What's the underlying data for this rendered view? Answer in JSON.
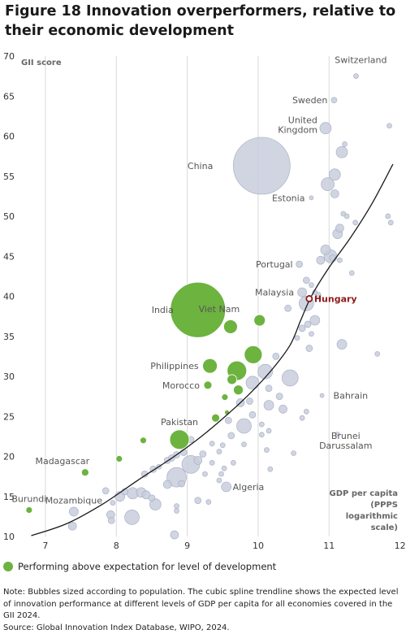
{
  "title": "Figure 18 Innovation overperformers, relative to their economic development",
  "legend_label": "Performing above expectation for level of development",
  "note": "Note: Bubbles sized according to population. The cubic spline trendline shows the expected level of innovation performance at different levels of GDP per capita for all economies covered in the GII 2024.",
  "source": "Source: Global Innovation Index Database, WIPO, 2024.",
  "colors": {
    "overperformer": "#6db33f",
    "other": "#c9cedd",
    "other_stroke": "#aab2c6",
    "highlight": "#8b1a1a",
    "trend": "#1a1a1a",
    "grid": "#d9d9d9",
    "label": "#555555"
  },
  "chart_data": {
    "type": "scatter",
    "title": "Figure 18 Innovation overperformers, relative to their economic development",
    "ylabel": "GII score",
    "xlabel": "GDP per capita (PPPS logarithmic scale)",
    "xlabel_lines": [
      "GDP per capita",
      "(PPPS",
      "logarithmic",
      "scale)"
    ],
    "xlim": [
      6.6,
      12.05
    ],
    "ylim": [
      10,
      70
    ],
    "xticks": [
      7,
      8,
      9,
      10,
      11,
      12
    ],
    "yticks": [
      10,
      15,
      20,
      25,
      30,
      35,
      40,
      45,
      50,
      55,
      60,
      65,
      70
    ],
    "grid": "vertical",
    "legend_position": "bottom-left",
    "trendline": [
      [
        6.8,
        10.1
      ],
      [
        7.3,
        11.6
      ],
      [
        7.8,
        14.0
      ],
      [
        8.3,
        17.0
      ],
      [
        8.8,
        19.9
      ],
      [
        9.2,
        22.5
      ],
      [
        9.6,
        25.5
      ],
      [
        9.9,
        28.0
      ],
      [
        10.2,
        30.9
      ],
      [
        10.45,
        33.9
      ],
      [
        10.6,
        37.0
      ],
      [
        10.75,
        40.0
      ],
      [
        11.0,
        43.6
      ],
      [
        11.3,
        47.3
      ],
      [
        11.6,
        51.5
      ],
      [
        11.9,
        56.5
      ]
    ],
    "highlight": {
      "label": "Hungary",
      "x": 10.72,
      "y": 39.7
    },
    "labeled_points": [
      {
        "label": "Switzerland",
        "x": 11.38,
        "y": 67.5,
        "size": 3,
        "group": "other"
      },
      {
        "label": "Sweden",
        "x": 11.07,
        "y": 64.5,
        "size": 3.5,
        "group": "other"
      },
      {
        "label": "United Kingdom",
        "x": 10.95,
        "y": 61.0,
        "size": 7,
        "group": "other"
      },
      {
        "label": "China",
        "x": 10.05,
        "y": 56.3,
        "size": 35,
        "group": "other"
      },
      {
        "label": "Estonia",
        "x": 10.75,
        "y": 52.3,
        "size": 2.5,
        "group": "other"
      },
      {
        "label": "Portugal",
        "x": 10.58,
        "y": 44.0,
        "size": 4,
        "group": "other"
      },
      {
        "label": "Malaysia",
        "x": 10.62,
        "y": 40.5,
        "size": 5.5,
        "group": "other"
      },
      {
        "label": "India",
        "x": 9.15,
        "y": 38.3,
        "size": 34,
        "group": "overperformer"
      },
      {
        "label": "Viet Nam",
        "x": 9.61,
        "y": 36.2,
        "size": 8.5,
        "group": "overperformer"
      },
      {
        "label": "Philippines",
        "x": 9.32,
        "y": 31.3,
        "size": 9,
        "group": "overperformer"
      },
      {
        "label": "Morocco",
        "x": 9.29,
        "y": 28.9,
        "size": 5,
        "group": "overperformer"
      },
      {
        "label": "Bahrain",
        "x": 10.9,
        "y": 27.6,
        "size": 2.5,
        "group": "other"
      },
      {
        "label": "Pakistan",
        "x": 8.89,
        "y": 22.1,
        "size": 12,
        "group": "overperformer"
      },
      {
        "label": "Brunei Darussalam",
        "x": 11.12,
        "y": 22.8,
        "size": 2.5,
        "group": "other"
      },
      {
        "label": "Madagascar",
        "x": 7.56,
        "y": 18.0,
        "size": 4.5,
        "group": "overperformer"
      },
      {
        "label": "Algeria",
        "x": 9.55,
        "y": 16.2,
        "size": 6,
        "group": "other"
      },
      {
        "label": "Burundi",
        "x": 6.77,
        "y": 13.3,
        "size": 4,
        "group": "overperformer"
      },
      {
        "label": "Mozambique",
        "x": 7.4,
        "y": 13.1,
        "size": 5.5,
        "group": "other"
      }
    ],
    "overperformers": [
      [
        10.02,
        37.0,
        7
      ],
      [
        9.93,
        32.7,
        11
      ],
      [
        9.7,
        30.7,
        12
      ],
      [
        9.63,
        29.6,
        6
      ],
      [
        9.72,
        28.3,
        6
      ],
      [
        9.53,
        27.4,
        4
      ],
      [
        9.4,
        24.8,
        5
      ],
      [
        8.38,
        22.0,
        4
      ],
      [
        8.04,
        19.7,
        4
      ],
      [
        9.56,
        25.5,
        3
      ]
    ],
    "others": [
      [
        11.85,
        61.3,
        3
      ],
      [
        11.22,
        59.0,
        3
      ],
      [
        11.18,
        58.0,
        7
      ],
      [
        11.08,
        55.2,
        7
      ],
      [
        10.98,
        54.0,
        8
      ],
      [
        11.08,
        52.8,
        5
      ],
      [
        11.2,
        50.3,
        3
      ],
      [
        11.25,
        50.0,
        3
      ],
      [
        11.37,
        49.2,
        3
      ],
      [
        11.83,
        50.0,
        3
      ],
      [
        11.87,
        49.2,
        3
      ],
      [
        11.15,
        48.5,
        5
      ],
      [
        11.12,
        47.8,
        6
      ],
      [
        10.95,
        45.8,
        6
      ],
      [
        11.02,
        45.0,
        8
      ],
      [
        11.05,
        44.8,
        4
      ],
      [
        10.88,
        44.5,
        5
      ],
      [
        11.15,
        44.5,
        3
      ],
      [
        11.32,
        42.9,
        3
      ],
      [
        10.68,
        42.0,
        4
      ],
      [
        10.75,
        41.4,
        3
      ],
      [
        10.8,
        40.5,
        3
      ],
      [
        10.85,
        40.2,
        3
      ],
      [
        10.68,
        39.1,
        9
      ],
      [
        10.42,
        38.5,
        4
      ],
      [
        10.8,
        37.0,
        6
      ],
      [
        10.7,
        36.5,
        4
      ],
      [
        10.62,
        36.0,
        4
      ],
      [
        10.75,
        35.3,
        3
      ],
      [
        10.55,
        34.8,
        3
      ],
      [
        11.18,
        34.0,
        6
      ],
      [
        11.68,
        32.8,
        3
      ],
      [
        10.72,
        33.5,
        4
      ],
      [
        10.25,
        32.5,
        4
      ],
      [
        10.1,
        30.6,
        9
      ],
      [
        9.92,
        29.2,
        8
      ],
      [
        10.45,
        29.8,
        10
      ],
      [
        10.15,
        28.5,
        4
      ],
      [
        10.3,
        27.5,
        4
      ],
      [
        9.88,
        26.9,
        4
      ],
      [
        9.75,
        26.7,
        5
      ],
      [
        10.15,
        26.4,
        6
      ],
      [
        10.35,
        25.9,
        5
      ],
      [
        10.68,
        25.6,
        3
      ],
      [
        9.92,
        25.2,
        4
      ],
      [
        10.62,
        24.8,
        3
      ],
      [
        9.58,
        24.5,
        4
      ],
      [
        9.8,
        23.8,
        9
      ],
      [
        10.05,
        24.0,
        3
      ],
      [
        10.15,
        23.2,
        3
      ],
      [
        9.62,
        22.6,
        4
      ],
      [
        9.05,
        22.1,
        4
      ],
      [
        9.35,
        21.6,
        3
      ],
      [
        9.5,
        21.4,
        3
      ],
      [
        9.8,
        21.5,
        3
      ],
      [
        9.45,
        20.6,
        3
      ],
      [
        9.22,
        20.3,
        4
      ],
      [
        10.12,
        20.8,
        3
      ],
      [
        8.95,
        20.5,
        4
      ],
      [
        8.85,
        20.2,
        4
      ],
      [
        8.78,
        19.8,
        4
      ],
      [
        8.72,
        19.5,
        4
      ],
      [
        9.15,
        19.5,
        5
      ],
      [
        9.35,
        19.2,
        3
      ],
      [
        9.05,
        19.0,
        11
      ],
      [
        8.6,
        18.7,
        3
      ],
      [
        8.52,
        18.4,
        4
      ],
      [
        8.4,
        17.8,
        4
      ],
      [
        8.85,
        17.4,
        12
      ],
      [
        9.25,
        17.8,
        3
      ],
      [
        9.48,
        17.8,
        3
      ],
      [
        9.45,
        17.0,
        3
      ],
      [
        8.72,
        16.5,
        5
      ],
      [
        8.92,
        16.6,
        4
      ],
      [
        7.85,
        15.7,
        4
      ],
      [
        8.12,
        15.6,
        4
      ],
      [
        8.23,
        15.4,
        7
      ],
      [
        8.35,
        15.5,
        6
      ],
      [
        8.42,
        15.2,
        5
      ],
      [
        8.05,
        15.0,
        6
      ],
      [
        7.95,
        14.2,
        3
      ],
      [
        8.5,
        14.8,
        4
      ],
      [
        8.55,
        14.0,
        7
      ],
      [
        9.15,
        14.5,
        4
      ],
      [
        9.3,
        14.3,
        3
      ],
      [
        8.85,
        13.8,
        3
      ],
      [
        8.85,
        13.2,
        3
      ],
      [
        7.92,
        12.7,
        5
      ],
      [
        8.22,
        12.4,
        9
      ],
      [
        7.93,
        12.0,
        4
      ],
      [
        7.38,
        11.3,
        5
      ],
      [
        8.82,
        10.2,
        5
      ],
      [
        10.17,
        18.4,
        3
      ],
      [
        10.5,
        20.4,
        3
      ],
      [
        10.05,
        22.7,
        3
      ],
      [
        9.65,
        19.2,
        3
      ],
      [
        9.52,
        18.5,
        3
      ]
    ]
  }
}
